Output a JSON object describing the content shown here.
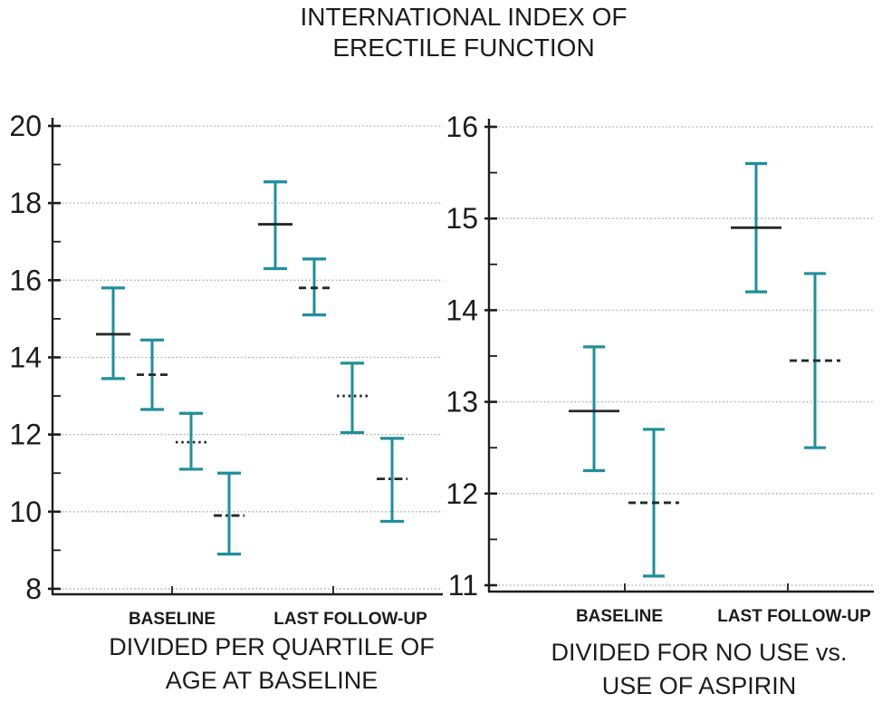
{
  "title": {
    "line1": "INTERNATIONAL INDEX OF",
    "line2": "ERECTILE FUNCTION"
  },
  "colors": {
    "whisker_teal": "#1e8f9b",
    "mean_line_dark": "#252a27",
    "grid_gray": "#a9a9a9",
    "axis_black": "#1c1c1c",
    "text_black": "#1c1c1c"
  },
  "chart_data": [
    {
      "type": "errorbar",
      "panel": "left",
      "caption_line1": "DIVIDED PER QUARTILE OF",
      "caption_line2": "AGE AT BASELINE",
      "groups": [
        "BASELINE",
        "LAST FOLLOW-UP"
      ],
      "ylim": [
        8,
        20
      ],
      "yticks": [
        20,
        18,
        16,
        14,
        12,
        10,
        8
      ],
      "minor_tick_step": 1,
      "grid": true,
      "points": [
        {
          "group": "BASELINE",
          "slot": 1,
          "mean": 14.6,
          "lo": 13.45,
          "hi": 15.8,
          "style": "solid"
        },
        {
          "group": "BASELINE",
          "slot": 2,
          "mean": 13.55,
          "lo": 12.65,
          "hi": 14.45,
          "style": "dashed"
        },
        {
          "group": "BASELINE",
          "slot": 3,
          "mean": 11.8,
          "lo": 11.1,
          "hi": 12.55,
          "style": "dotted"
        },
        {
          "group": "BASELINE",
          "slot": 4,
          "mean": 9.9,
          "lo": 8.9,
          "hi": 11.0,
          "style": "dashdot"
        },
        {
          "group": "LAST FOLLOW-UP",
          "slot": 1,
          "mean": 17.45,
          "lo": 16.3,
          "hi": 18.55,
          "style": "solid"
        },
        {
          "group": "LAST FOLLOW-UP",
          "slot": 2,
          "mean": 15.8,
          "lo": 15.1,
          "hi": 16.55,
          "style": "dashed"
        },
        {
          "group": "LAST FOLLOW-UP",
          "slot": 3,
          "mean": 13.0,
          "lo": 12.05,
          "hi": 13.85,
          "style": "dotted"
        },
        {
          "group": "LAST FOLLOW-UP",
          "slot": 4,
          "mean": 10.85,
          "lo": 9.75,
          "hi": 11.9,
          "style": "dashdot"
        }
      ]
    },
    {
      "type": "errorbar",
      "panel": "right",
      "caption_line1": "DIVIDED FOR NO USE vs.",
      "caption_line2": "USE OF ASPIRIN",
      "groups": [
        "BASELINE",
        "LAST FOLLOW-UP"
      ],
      "ylim": [
        11,
        16
      ],
      "yticks": [
        16,
        15,
        14,
        13,
        12,
        11
      ],
      "minor_tick_step": 0.5,
      "grid": true,
      "points": [
        {
          "group": "BASELINE",
          "slot": 1,
          "mean": 12.9,
          "lo": 12.25,
          "hi": 13.6,
          "style": "solid"
        },
        {
          "group": "BASELINE",
          "slot": 2,
          "mean": 11.9,
          "lo": 11.1,
          "hi": 12.7,
          "style": "dashed"
        },
        {
          "group": "LAST FOLLOW-UP",
          "slot": 1,
          "mean": 14.9,
          "lo": 14.2,
          "hi": 15.6,
          "style": "solid"
        },
        {
          "group": "LAST FOLLOW-UP",
          "slot": 2,
          "mean": 13.45,
          "lo": 12.5,
          "hi": 14.4,
          "style": "dashed"
        }
      ]
    }
  ]
}
